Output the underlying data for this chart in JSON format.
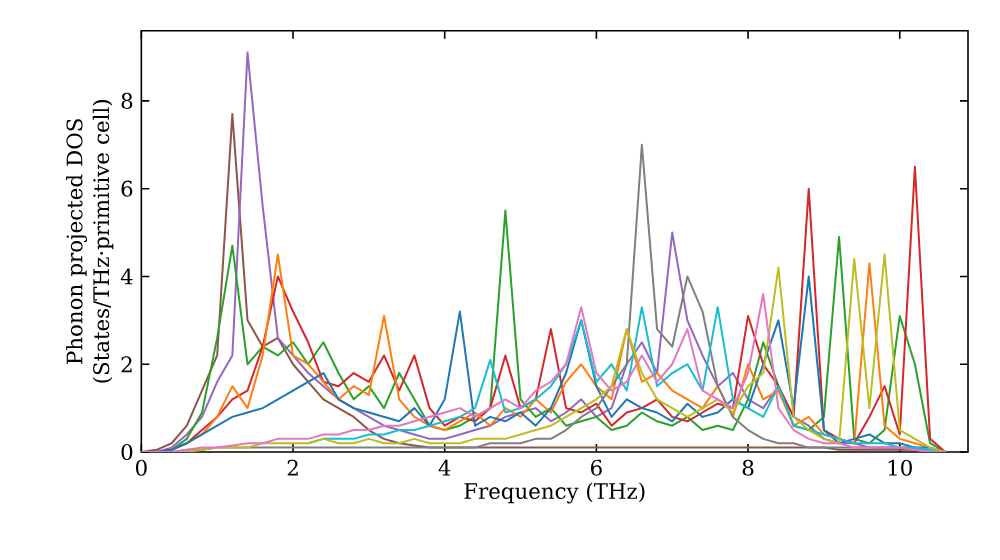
{
  "chart_data": {
    "type": "line",
    "xlabel": "Frequency (THz)",
    "ylabel": "Phonon projected DOS (States/THz·primitive cell)",
    "xlim": [
      0,
      10.9
    ],
    "ylim": [
      0,
      9.6
    ],
    "xticks": [
      0,
      2,
      4,
      6,
      8,
      10
    ],
    "yticks": [
      0,
      2,
      4,
      6,
      8
    ],
    "grid": false,
    "marker": "none",
    "line_style": "solid",
    "x": [
      0,
      0.2,
      0.4,
      0.6,
      0.8,
      1.0,
      1.2,
      1.4,
      1.6,
      1.8,
      2.0,
      2.2,
      2.4,
      2.6,
      2.8,
      3.0,
      3.2,
      3.4,
      3.6,
      3.8,
      4.0,
      4.2,
      4.4,
      4.6,
      4.8,
      5.0,
      5.2,
      5.4,
      5.6,
      5.8,
      6.0,
      6.2,
      6.4,
      6.6,
      6.8,
      7.0,
      7.2,
      7.4,
      7.6,
      7.8,
      8.0,
      8.2,
      8.4,
      8.6,
      8.8,
      9.0,
      9.2,
      9.4,
      9.6,
      9.8,
      10.0,
      10.2,
      10.4,
      10.6
    ],
    "series": [
      {
        "color": "#8c564b",
        "values": [
          0,
          0.05,
          0.2,
          0.6,
          1.4,
          2.2,
          7.7,
          3.0,
          2.4,
          2.6,
          2.0,
          1.6,
          1.2,
          1.0,
          0.8,
          0.5,
          0.3,
          0.2,
          0.15,
          0.1,
          0.1,
          0.1,
          0.1,
          0.1,
          0.1,
          0.1,
          0.1,
          0.1,
          0.1,
          0.1,
          0.1,
          0.1,
          0.1,
          0.1,
          0.1,
          0.1,
          0.1,
          0.1,
          0.1,
          0.1,
          0.1,
          0.1,
          0.1,
          0.1,
          0.1,
          0.1,
          0.05,
          0.05,
          0.05,
          0.05,
          0.05,
          0.05,
          0,
          0
        ]
      },
      {
        "color": "#9467bd",
        "values": [
          0,
          0,
          0.1,
          0.4,
          0.8,
          1.6,
          2.2,
          9.1,
          5.6,
          2.6,
          2.2,
          1.8,
          1.5,
          1.2,
          1.0,
          0.8,
          0.6,
          0.5,
          0.4,
          0.3,
          0.3,
          0.4,
          0.5,
          0.6,
          0.8,
          0.9,
          1.0,
          0.7,
          0.9,
          1.2,
          0.8,
          1.0,
          2.0,
          2.5,
          1.8,
          5.0,
          3.0,
          2.2,
          1.5,
          1.8,
          1.2,
          1.0,
          1.5,
          0.8,
          0.6,
          0.3,
          0.2,
          0.2,
          0.1,
          0.1,
          0.1,
          0.1,
          0,
          0
        ]
      },
      {
        "color": "#2ca02c",
        "values": [
          0,
          0,
          0.05,
          0.3,
          0.9,
          2.6,
          4.7,
          2.0,
          2.4,
          2.2,
          2.5,
          2.0,
          2.5,
          1.8,
          1.2,
          1.5,
          1.0,
          1.8,
          1.2,
          0.6,
          0.5,
          0.6,
          0.8,
          1.0,
          5.5,
          1.2,
          0.8,
          1.0,
          0.6,
          0.7,
          0.8,
          0.5,
          0.6,
          0.9,
          0.7,
          0.6,
          0.8,
          0.5,
          0.6,
          0.5,
          1.2,
          2.5,
          1.5,
          0.6,
          0.5,
          0.8,
          4.9,
          0.3,
          0.2,
          0.5,
          3.1,
          2.0,
          0.2,
          0
        ]
      },
      {
        "color": "#d62728",
        "values": [
          0,
          0,
          0.05,
          0.2,
          0.5,
          0.8,
          1.2,
          1.4,
          2.4,
          4.0,
          3.2,
          2.5,
          1.6,
          1.5,
          1.8,
          1.6,
          2.2,
          1.4,
          2.2,
          1.0,
          0.6,
          0.8,
          0.7,
          1.0,
          2.2,
          1.0,
          1.2,
          2.8,
          1.0,
          0.9,
          1.1,
          0.6,
          0.9,
          1.0,
          1.2,
          0.8,
          0.7,
          0.9,
          1.1,
          1.0,
          3.1,
          2.0,
          1.5,
          0.8,
          6.0,
          0.5,
          0.3,
          0.2,
          0.8,
          1.5,
          0.4,
          6.5,
          0.3,
          0
        ]
      },
      {
        "color": "#ff7f0e",
        "values": [
          null,
          null,
          null,
          0.2,
          0.4,
          0.8,
          1.5,
          1.0,
          2.2,
          4.5,
          2.2,
          2.0,
          1.6,
          1.2,
          1.5,
          1.3,
          3.1,
          1.2,
          0.8,
          0.6,
          0.5,
          0.7,
          0.9,
          0.6,
          1.0,
          0.8,
          1.2,
          0.9,
          1.6,
          2.0,
          1.5,
          1.2,
          2.8,
          1.6,
          1.8,
          1.4,
          1.2,
          1.0,
          1.5,
          0.8,
          2.0,
          1.2,
          1.4,
          0.6,
          0.8,
          0.4,
          0.3,
          0.2,
          4.3,
          0.6,
          0.3,
          0.2,
          0.1,
          0
        ]
      },
      {
        "color": "#1f77b4",
        "values": [
          0,
          0,
          0.05,
          0.2,
          0.4,
          0.6,
          0.8,
          0.9,
          1.0,
          1.2,
          1.4,
          1.6,
          1.8,
          1.2,
          1.0,
          0.9,
          0.8,
          0.7,
          1.0,
          0.6,
          1.2,
          3.2,
          0.6,
          0.8,
          0.7,
          0.9,
          0.6,
          1.0,
          1.8,
          3.0,
          1.5,
          0.8,
          1.2,
          1.0,
          0.9,
          0.7,
          1.1,
          0.8,
          0.9,
          1.2,
          1.0,
          2.0,
          3.0,
          1.0,
          4.0,
          0.5,
          0.2,
          0.3,
          0.4,
          0.2,
          0.2,
          0.1,
          0.1,
          0
        ]
      },
      {
        "color": "#7f7f7f",
        "values": [
          0,
          0,
          0,
          0.05,
          0.05,
          0.1,
          0.1,
          0.1,
          0.1,
          0.1,
          0.1,
          0.1,
          0.1,
          0.1,
          0.1,
          0.1,
          0.1,
          0.1,
          0.1,
          0.1,
          0.1,
          0.1,
          0.1,
          0.2,
          0.2,
          0.2,
          0.3,
          0.3,
          0.5,
          0.8,
          1.0,
          1.5,
          2.0,
          7.0,
          2.8,
          2.4,
          4.0,
          3.2,
          1.5,
          0.8,
          0.5,
          0.3,
          0.2,
          0.2,
          0.1,
          0.1,
          0.1,
          0.1,
          0.1,
          0.1,
          0.1,
          0.05,
          0,
          0
        ]
      },
      {
        "color": "#17becf",
        "values": [
          null,
          null,
          null,
          null,
          null,
          null,
          null,
          null,
          null,
          null,
          null,
          0.2,
          0.3,
          0.3,
          0.3,
          0.4,
          0.4,
          0.5,
          0.5,
          0.6,
          0.7,
          0.8,
          1.0,
          2.1,
          0.9,
          1.0,
          1.2,
          1.5,
          2.0,
          3.0,
          1.6,
          2.0,
          1.4,
          3.3,
          1.5,
          1.8,
          2.0,
          1.4,
          3.3,
          1.2,
          1.0,
          0.8,
          1.5,
          0.6,
          0.5,
          0.4,
          0.3,
          0.2,
          0.2,
          0.2,
          0.1,
          0.1,
          0.05,
          0
        ]
      },
      {
        "color": "#bcbd22",
        "values": [
          0,
          0,
          0,
          0,
          0.05,
          0.1,
          0.1,
          0.1,
          0.2,
          0.2,
          0.2,
          0.2,
          0.3,
          0.2,
          0.2,
          0.3,
          0.2,
          0.2,
          0.3,
          0.2,
          0.2,
          0.2,
          0.3,
          0.3,
          0.3,
          0.4,
          0.5,
          0.6,
          0.8,
          1.0,
          1.2,
          1.5,
          2.8,
          1.8,
          1.2,
          1.0,
          0.8,
          1.0,
          1.2,
          0.9,
          1.5,
          1.8,
          4.2,
          0.8,
          0.5,
          0.3,
          0.2,
          4.4,
          1.0,
          4.5,
          0.5,
          0.3,
          0.1,
          0
        ]
      },
      {
        "color": "#e377c2",
        "values": [
          0,
          0,
          0,
          0.05,
          0.1,
          0.1,
          0.15,
          0.2,
          0.2,
          0.3,
          0.3,
          0.3,
          0.4,
          0.4,
          0.5,
          0.5,
          0.6,
          0.6,
          0.7,
          0.8,
          0.9,
          1.0,
          0.8,
          1.0,
          1.2,
          1.0,
          1.4,
          1.6,
          2.0,
          3.3,
          1.8,
          1.4,
          1.6,
          2.2,
          1.6,
          2.0,
          2.8,
          1.4,
          1.2,
          1.0,
          1.8,
          3.6,
          1.0,
          0.5,
          0.3,
          0.2,
          0.2,
          0.1,
          0.1,
          0.1,
          0.1,
          0.05,
          0,
          0
        ]
      }
    ]
  }
}
